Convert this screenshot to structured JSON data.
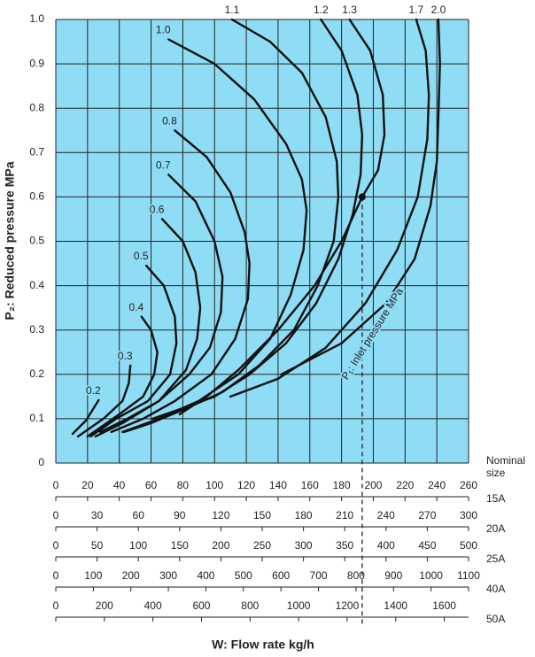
{
  "chart_data": {
    "type": "line",
    "ylabel": "P₂: Reduced pressure MPa",
    "xlabel": "W: Flow rate kg/h",
    "ylim": [
      0,
      1
    ],
    "yticks": [
      0,
      0.1,
      0.2,
      0.3,
      0.4,
      0.5,
      0.6,
      0.7,
      0.8,
      0.9,
      {
        "value": 1,
        "label": "1.0"
      }
    ],
    "xlim": [
      0,
      260
    ],
    "xticks": [
      0,
      20,
      40,
      60,
      80,
      100,
      120,
      140,
      160,
      180,
      200,
      220,
      240,
      260
    ],
    "x_axis_name": "15A",
    "nominal_size_label": "Nominal size",
    "grid": true,
    "background": "#8fdcf5",
    "extra_x_axes": [
      {
        "name": "20A",
        "xlim": [
          0,
          300
        ],
        "xticks": [
          0,
          30,
          60,
          90,
          120,
          150,
          180,
          210,
          240,
          270,
          300
        ]
      },
      {
        "name": "25A",
        "xlim": [
          0,
          500
        ],
        "xticks": [
          0,
          50,
          100,
          150,
          200,
          250,
          300,
          350,
          400,
          450,
          500
        ]
      },
      {
        "name": "40A",
        "xlim": [
          0,
          1100
        ],
        "xticks": [
          0,
          100,
          200,
          300,
          400,
          500,
          600,
          700,
          800,
          900,
          1000,
          1100
        ]
      },
      {
        "name": "50A",
        "xlim": [
          0,
          1700
        ],
        "xticks": [
          0,
          200,
          400,
          600,
          800,
          1000,
          1200,
          1400,
          1600
        ]
      }
    ],
    "series": [
      {
        "name": "0.2",
        "color": "#111111",
        "x": [
          27,
          19,
          10.6
        ],
        "values": [
          0.142,
          0.096,
          0.066
        ]
      },
      {
        "name": "0.3",
        "color": "#111111",
        "x": [
          47,
          46,
          42,
          30,
          14
        ],
        "values": [
          0.22,
          0.18,
          0.14,
          0.1,
          0.06
        ]
      },
      {
        "name": "0.4",
        "color": "#111111",
        "x": [
          54,
          60,
          64,
          62,
          55,
          40,
          20
        ],
        "values": [
          0.33,
          0.3,
          0.25,
          0.2,
          0.15,
          0.11,
          0.06
        ]
      },
      {
        "name": "0.5",
        "color": "#111111",
        "x": [
          57,
          68,
          75,
          76,
          72,
          58,
          38,
          22
        ],
        "values": [
          0.445,
          0.4,
          0.33,
          0.27,
          0.2,
          0.14,
          0.1,
          0.06
        ]
      },
      {
        "name": "0.6",
        "color": "#111111",
        "x": [
          67,
          80,
          88,
          91,
          89,
          82,
          65,
          42,
          25
        ],
        "values": [
          0.55,
          0.5,
          0.43,
          0.35,
          0.28,
          0.21,
          0.14,
          0.09,
          0.06
        ]
      },
      {
        "name": "0.7",
        "color": "#111111",
        "x": [
          71,
          88,
          100,
          105,
          104,
          97,
          84,
          65,
          45,
          28
        ],
        "values": [
          0.65,
          0.59,
          0.5,
          0.42,
          0.34,
          0.26,
          0.2,
          0.14,
          0.1,
          0.07
        ]
      },
      {
        "name": "0.8",
        "color": "#111111",
        "x": [
          75,
          95,
          110,
          119,
          122,
          121,
          113,
          98,
          75,
          55,
          35
        ],
        "values": [
          0.75,
          0.69,
          0.61,
          0.52,
          0.45,
          0.37,
          0.28,
          0.2,
          0.14,
          0.1,
          0.07
        ]
      },
      {
        "name": "1.0",
        "color": "#111111",
        "x": [
          71,
          100,
          125,
          145,
          155,
          158,
          156,
          148,
          135,
          115,
          90,
          65,
          42
        ],
        "values": [
          0.955,
          0.9,
          0.82,
          0.72,
          0.64,
          0.57,
          0.48,
          0.38,
          0.28,
          0.2,
          0.14,
          0.1,
          0.07
        ]
      },
      {
        "name": "1.1",
        "color": "#111111",
        "x": [
          111,
          135,
          155,
          170,
          177,
          178,
          175,
          165,
          150,
          128,
          105,
          80,
          60,
          43
        ],
        "values": [
          1.0,
          0.95,
          0.88,
          0.78,
          0.68,
          0.6,
          0.5,
          0.4,
          0.3,
          0.22,
          0.16,
          0.12,
          0.09,
          0.07
        ]
      },
      {
        "name": "1.2",
        "color": "#111111",
        "x": [
          167,
          180,
          190,
          193,
          192,
          187,
          178,
          164,
          145,
          122,
          100,
          85,
          61
        ],
        "values": [
          1.0,
          0.93,
          0.83,
          0.74,
          0.65,
          0.56,
          0.46,
          0.36,
          0.27,
          0.2,
          0.15,
          0.13,
          0.1
        ]
      },
      {
        "name": "1.3",
        "color": "#111111",
        "x": [
          185,
          198,
          206,
          207,
          203,
          193,
          180,
          163,
          140,
          115,
          95,
          78
        ],
        "values": [
          1.0,
          0.93,
          0.83,
          0.74,
          0.66,
          0.6,
          0.5,
          0.4,
          0.3,
          0.21,
          0.15,
          0.11
        ]
      },
      {
        "name": "1.7",
        "color": "#111111",
        "x": [
          227,
          233,
          235,
          234,
          228,
          215,
          195,
          170,
          140,
          110
        ],
        "values": [
          1.0,
          0.93,
          0.83,
          0.73,
          0.6,
          0.48,
          0.36,
          0.26,
          0.19,
          0.15
        ]
      },
      {
        "name": "2.0",
        "color": "#111111",
        "x": [
          241,
          242,
          241,
          240,
          236,
          226,
          208,
          180,
          142
        ],
        "values": [
          1.0,
          0.9,
          0.78,
          0.68,
          0.58,
          0.46,
          0.36,
          0.27,
          0.2
        ]
      }
    ],
    "annotation": {
      "x": 193,
      "y": 0.6,
      "label": "P₁: Inlet pressure MPa"
    }
  }
}
